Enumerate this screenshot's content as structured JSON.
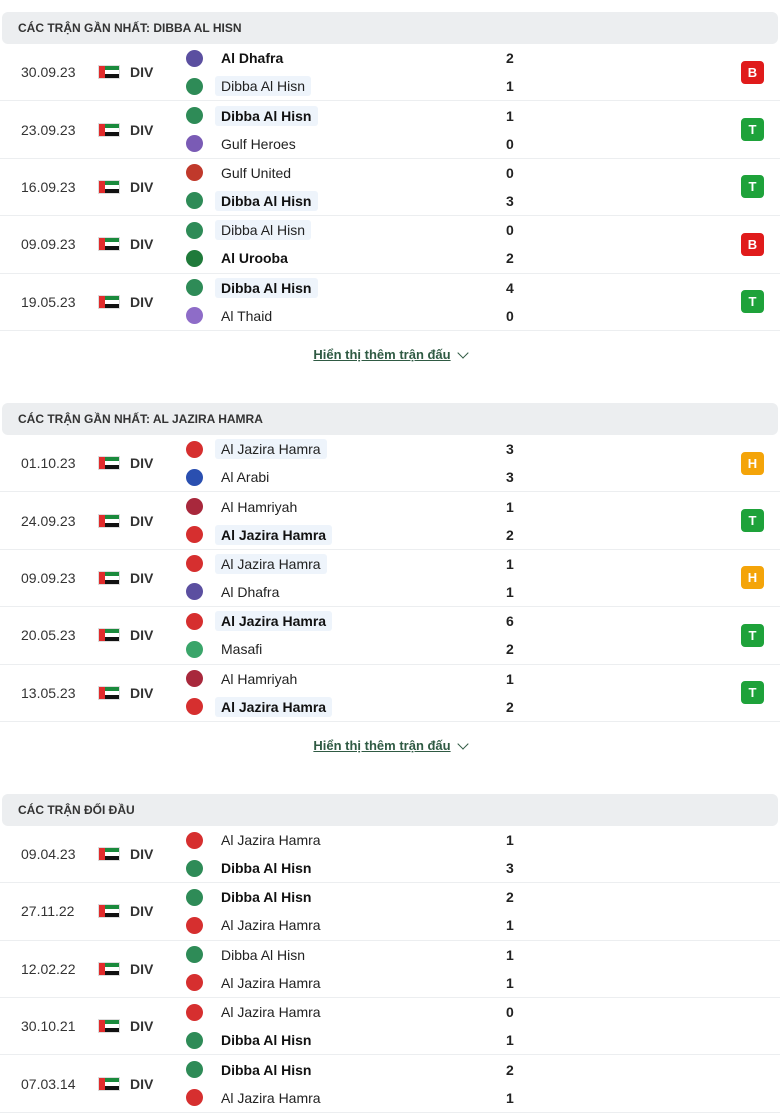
{
  "sections": [
    {
      "title": "CÁC TRẬN GẦN NHẤT: DIBBA AL HISN",
      "more": "Hiển thị thêm trận đấu",
      "matches": [
        {
          "date": "30.09.23",
          "league": "DIV",
          "home": "Al Dhafra",
          "away": "Dibba Al Hisn",
          "hs": "2",
          "as": "1",
          "result": "B",
          "hbold": true,
          "abold": false,
          "hl": "away"
        },
        {
          "date": "23.09.23",
          "league": "DIV",
          "home": "Dibba Al Hisn",
          "away": "Gulf Heroes",
          "hs": "1",
          "as": "0",
          "result": "T",
          "hbold": true,
          "abold": false,
          "hl": "home"
        },
        {
          "date": "16.09.23",
          "league": "DIV",
          "home": "Gulf United",
          "away": "Dibba Al Hisn",
          "hs": "0",
          "as": "3",
          "result": "T",
          "hbold": false,
          "abold": true,
          "hl": "away"
        },
        {
          "date": "09.09.23",
          "league": "DIV",
          "home": "Dibba Al Hisn",
          "away": "Al Urooba",
          "hs": "0",
          "as": "2",
          "result": "B",
          "hbold": false,
          "abold": true,
          "hl": "home"
        },
        {
          "date": "19.05.23",
          "league": "DIV",
          "home": "Dibba Al Hisn",
          "away": "Al Thaid",
          "hs": "4",
          "as": "0",
          "result": "T",
          "hbold": true,
          "abold": false,
          "hl": "home"
        }
      ]
    },
    {
      "title": "CÁC TRẬN GẦN NHẤT: AL JAZIRA HAMRA",
      "more": "Hiển thị thêm trận đấu",
      "matches": [
        {
          "date": "01.10.23",
          "league": "DIV",
          "home": "Al Jazira Hamra",
          "away": "Al Arabi",
          "hs": "3",
          "as": "3",
          "result": "H",
          "hbold": false,
          "abold": false,
          "hl": "home"
        },
        {
          "date": "24.09.23",
          "league": "DIV",
          "home": "Al Hamriyah",
          "away": "Al Jazira Hamra",
          "hs": "1",
          "as": "2",
          "result": "T",
          "hbold": false,
          "abold": true,
          "hl": "away"
        },
        {
          "date": "09.09.23",
          "league": "DIV",
          "home": "Al Jazira Hamra",
          "away": "Al Dhafra",
          "hs": "1",
          "as": "1",
          "result": "H",
          "hbold": false,
          "abold": false,
          "hl": "home"
        },
        {
          "date": "20.05.23",
          "league": "DIV",
          "home": "Al Jazira Hamra",
          "away": "Masafi",
          "hs": "6",
          "as": "2",
          "result": "T",
          "hbold": true,
          "abold": false,
          "hl": "home"
        },
        {
          "date": "13.05.23",
          "league": "DIV",
          "home": "Al Hamriyah",
          "away": "Al Jazira Hamra",
          "hs": "1",
          "as": "2",
          "result": "T",
          "hbold": false,
          "abold": true,
          "hl": "away"
        }
      ]
    },
    {
      "title": "CÁC TRẬN ĐỐI ĐẦU",
      "more": "",
      "matches": [
        {
          "date": "09.04.23",
          "league": "DIV",
          "home": "Al Jazira Hamra",
          "away": "Dibba Al Hisn",
          "hs": "1",
          "as": "3",
          "result": "",
          "hbold": false,
          "abold": true,
          "hl": ""
        },
        {
          "date": "27.11.22",
          "league": "DIV",
          "home": "Dibba Al Hisn",
          "away": "Al Jazira Hamra",
          "hs": "2",
          "as": "1",
          "result": "",
          "hbold": true,
          "abold": false,
          "hl": ""
        },
        {
          "date": "12.02.22",
          "league": "DIV",
          "home": "Dibba Al Hisn",
          "away": "Al Jazira Hamra",
          "hs": "1",
          "as": "1",
          "result": "",
          "hbold": false,
          "abold": false,
          "hl": ""
        },
        {
          "date": "30.10.21",
          "league": "DIV",
          "home": "Al Jazira Hamra",
          "away": "Dibba Al Hisn",
          "hs": "0",
          "as": "1",
          "result": "",
          "hbold": false,
          "abold": true,
          "hl": ""
        },
        {
          "date": "07.03.14",
          "league": "DIV",
          "home": "Dibba Al Hisn",
          "away": "Al Jazira Hamra",
          "hs": "2",
          "as": "1",
          "result": "",
          "hbold": true,
          "abold": false,
          "hl": ""
        }
      ]
    }
  ],
  "team_colors": {
    "Al Dhafra": "#5b4fa0",
    "Dibba Al Hisn": "#2e8b57",
    "Gulf Heroes": "#7a5bb5",
    "Gulf United": "#c0392b",
    "Al Urooba": "#1f7a3a",
    "Al Thaid": "#8e6cc8",
    "Al Jazira Hamra": "#d62f2f",
    "Al Arabi": "#2a4fb0",
    "Al Hamriyah": "#a8283c",
    "Masafi": "#3aa56a"
  }
}
